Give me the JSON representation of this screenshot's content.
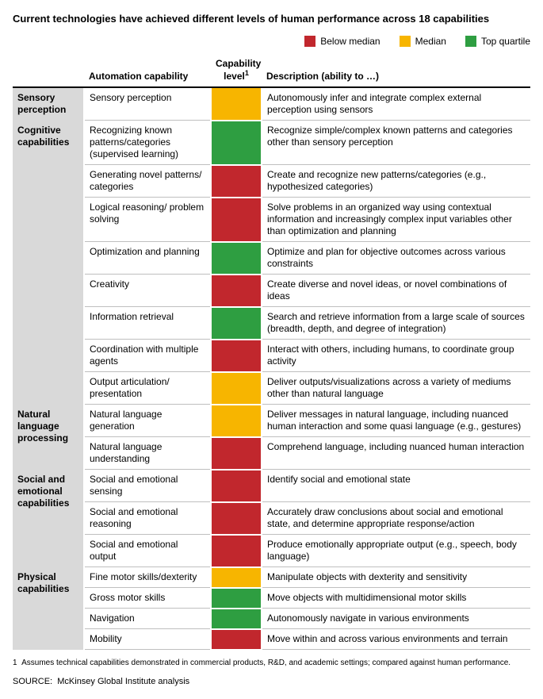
{
  "title": "Current technologies have achieved different levels of human performance across 18 capabilities",
  "legend": {
    "below": "Below median",
    "median": "Median",
    "top": "Top quartile"
  },
  "colors": {
    "below": "#c1272d",
    "median": "#f7b500",
    "top": "#2e9e41",
    "group_bg": "#d9d9d9",
    "rule": "#bfbfbf"
  },
  "headers": {
    "group": "",
    "capability": "Automation capability",
    "level": "Capability level",
    "level_sup": "1",
    "description": "Description (ability to …)"
  },
  "groups": [
    {
      "name": "Sensory perception",
      "rows": [
        {
          "capability": "Sensory perception",
          "level": "median",
          "description": "Autonomously infer and integrate complex external perception using sensors"
        }
      ]
    },
    {
      "name": "Cognitive capabilities",
      "rows": [
        {
          "capability": "Recognizing known patterns/categories (supervised learning)",
          "level": "top",
          "description": "Recognize simple/complex known patterns and categories other than sensory perception"
        },
        {
          "capability": "Generating novel patterns/ categories",
          "level": "below",
          "description": "Create and recognize new patterns/categories (e.g., hypothesized categories)"
        },
        {
          "capability": "Logical reasoning/ problem solving",
          "level": "below",
          "description": "Solve problems in an organized way using contextual information and increasingly complex input variables other than optimization and planning"
        },
        {
          "capability": "Optimization and planning",
          "level": "top",
          "description": "Optimize and plan for objective outcomes across various constraints"
        },
        {
          "capability": "Creativity",
          "level": "below",
          "description": "Create diverse and novel ideas, or novel combinations of ideas"
        },
        {
          "capability": "Information retrieval",
          "level": "top",
          "description": "Search and retrieve information from a large scale of sources (breadth, depth, and degree of integration)"
        },
        {
          "capability": "Coordination with multiple agents",
          "level": "below",
          "description": "Interact with others, including humans, to coordinate group activity"
        },
        {
          "capability": "Output articulation/ presentation",
          "level": "median",
          "description": "Deliver outputs/visualizations across a variety of mediums other than natural language"
        }
      ]
    },
    {
      "name": "Natural language processing",
      "rows": [
        {
          "capability": "Natural language generation",
          "level": "median",
          "description": "Deliver messages in natural language, including nuanced human interaction and some quasi language (e.g., gestures)"
        },
        {
          "capability": "Natural language understanding",
          "level": "below",
          "description": "Comprehend language, including nuanced human interaction"
        }
      ]
    },
    {
      "name": "Social and emotional capabilities",
      "rows": [
        {
          "capability": "Social and emotional sensing",
          "level": "below",
          "description": "Identify social and emotional state"
        },
        {
          "capability": "Social and emotional reasoning",
          "level": "below",
          "description": "Accurately draw conclusions about social and emotional state, and determine appropriate response/action"
        },
        {
          "capability": "Social and emotional output",
          "level": "below",
          "description": "Produce emotionally appropriate output (e.g., speech, body language)"
        }
      ]
    },
    {
      "name": "Physical capabilities",
      "rows": [
        {
          "capability": "Fine motor skills/dexterity",
          "level": "median",
          "description": "Manipulate objects with dexterity and sensitivity"
        },
        {
          "capability": "Gross motor skills",
          "level": "top",
          "description": "Move objects with multidimensional motor skills"
        },
        {
          "capability": "Navigation",
          "level": "top",
          "description": "Autonomously navigate in various environments"
        },
        {
          "capability": "Mobility",
          "level": "below",
          "description": "Move within and across various environments and terrain"
        }
      ]
    }
  ],
  "footnote_marker": "1",
  "footnote": "Assumes technical capabilities demonstrated in commercial products, R&D, and academic settings; compared against human performance.",
  "source_label": "SOURCE:",
  "source": "McKinsey Global Institute analysis"
}
